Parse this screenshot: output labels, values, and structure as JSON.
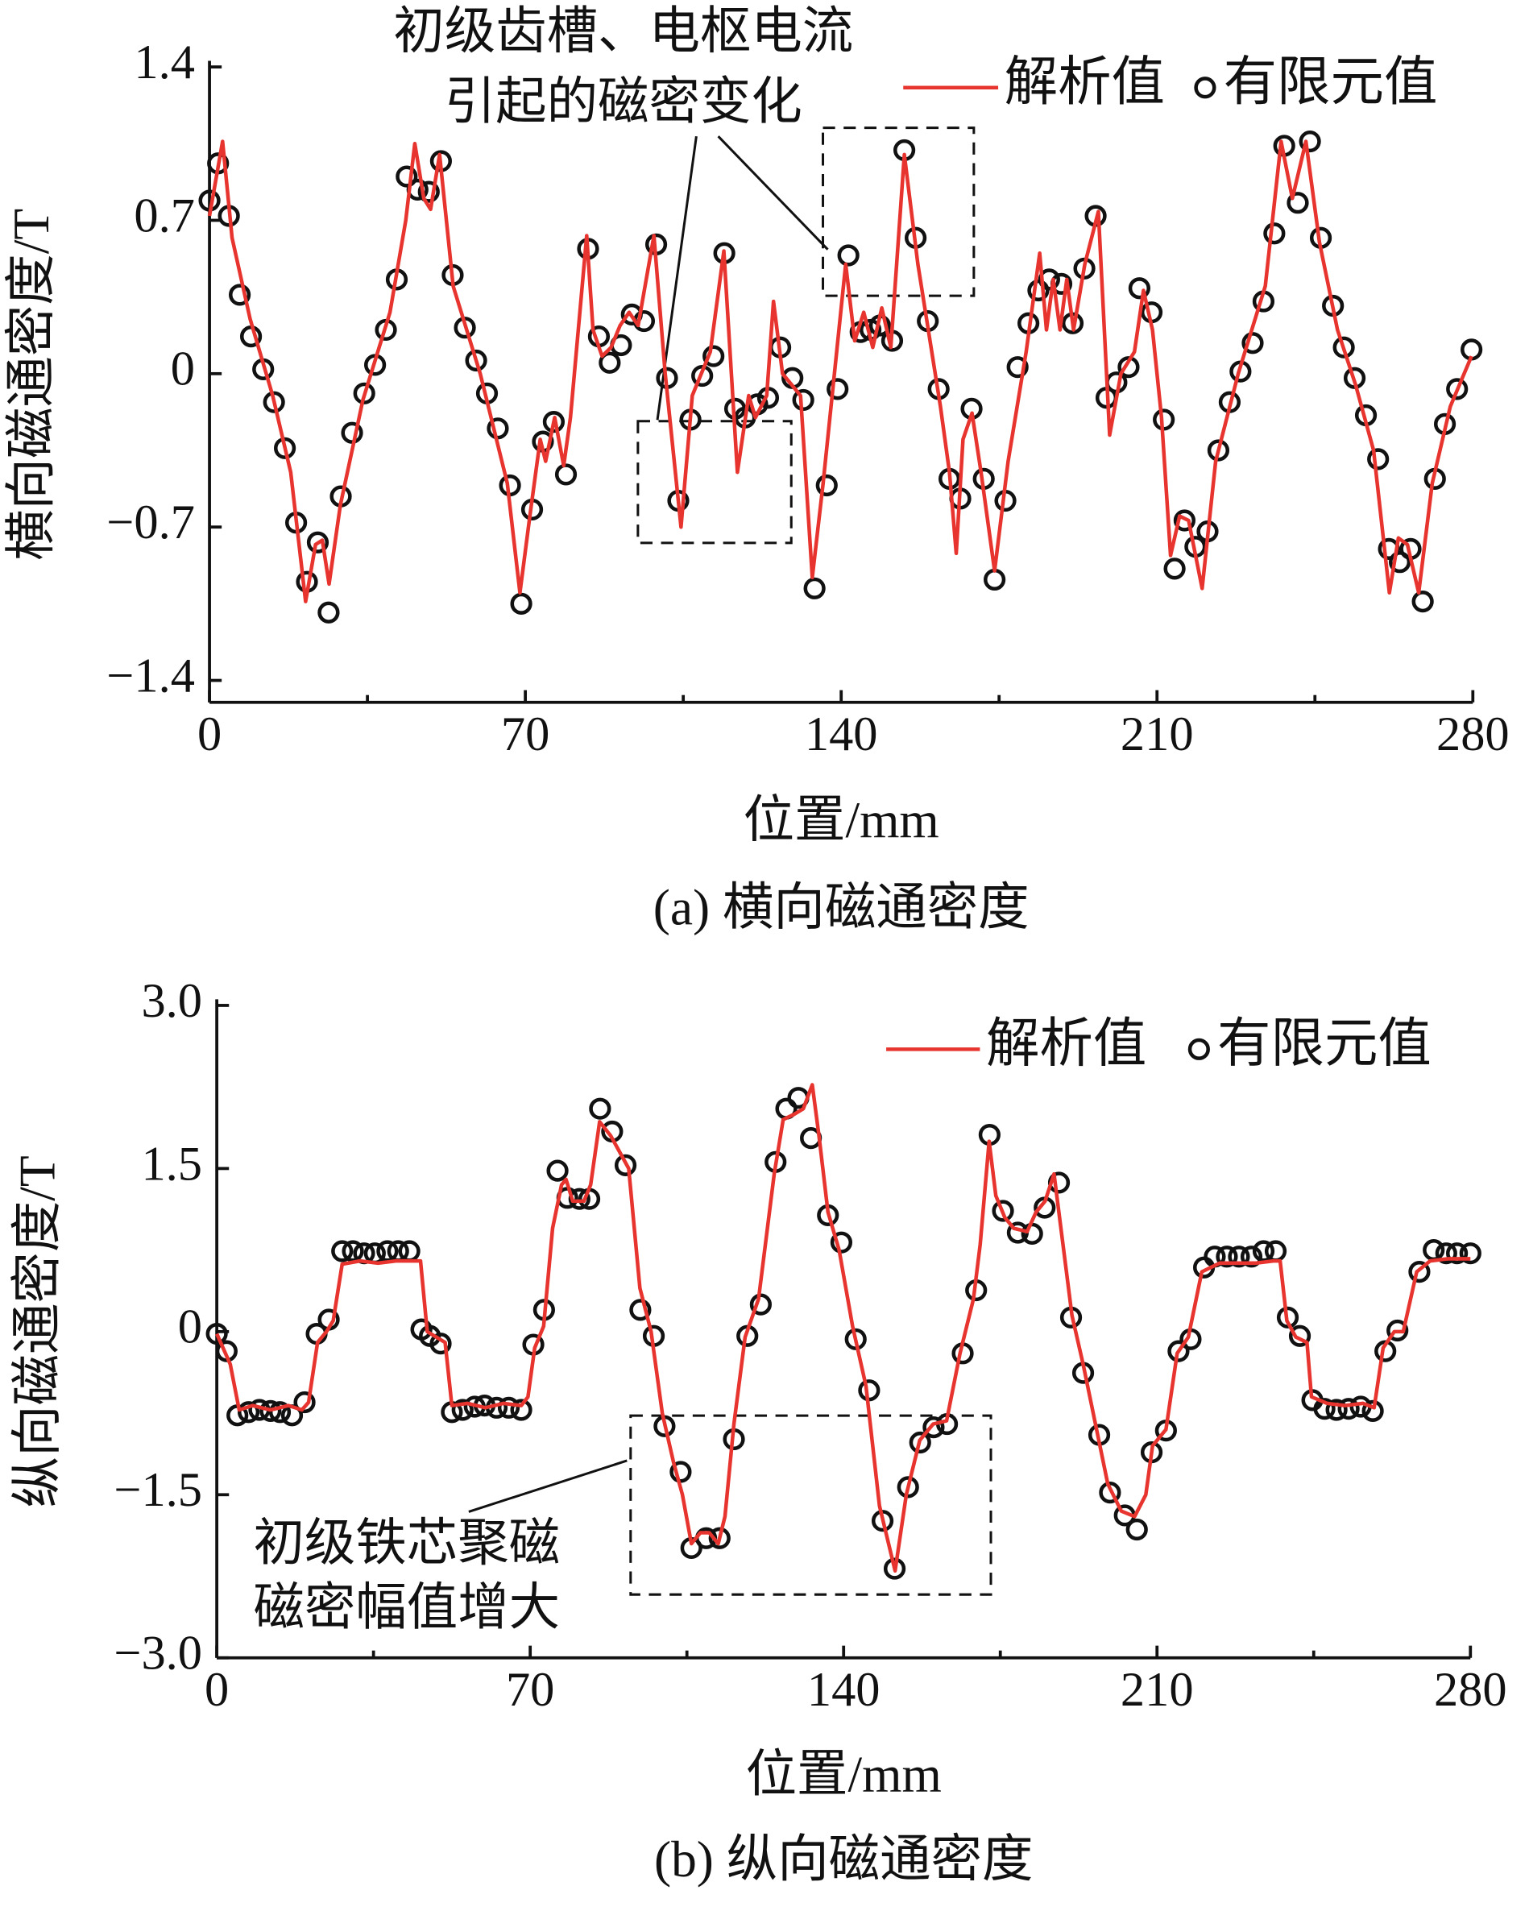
{
  "chart_data": [
    {
      "type": "line",
      "xlabel": "位置/mm",
      "ylabel": "横向磁通密度/T",
      "caption": "(a) 横向磁通密度",
      "annotations": [
        "初级齿槽、电枢电流",
        "引起的磁密变化"
      ],
      "xlim": [
        0,
        280
      ],
      "xticks": [
        0,
        70,
        140,
        210,
        280
      ],
      "xminorticks": [
        35,
        105,
        175,
        245
      ],
      "ylim": [
        -1.5,
        1.4
      ],
      "yticks": [
        {
          "value": -1.4,
          "label": "−1.4"
        },
        {
          "value": -0.7,
          "label": "−0.7"
        },
        0,
        0.7,
        1.4
      ],
      "legend": "upper right",
      "series": [
        {
          "name": "解析值",
          "color": "#e8342e",
          "type": "line",
          "x": [
            0,
            2.9,
            5,
            9,
            14,
            18,
            21.3,
            23.5,
            25,
            26.5,
            29,
            34,
            40,
            43.5,
            45.5,
            47.5,
            49,
            51,
            54,
            60,
            66,
            68.8,
            71,
            73.3,
            74.5,
            76.5,
            78.5,
            80,
            83.6,
            85,
            87,
            89,
            91,
            93,
            95,
            98.5,
            101,
            104.5,
            107,
            111,
            114,
            117,
            119.5,
            121,
            123.5,
            125,
            127,
            131,
            133.6,
            136,
            138,
            141,
            143,
            145,
            147,
            149,
            151,
            154,
            157,
            162,
            164,
            165.5,
            167,
            169,
            171,
            174,
            177,
            181,
            184,
            185.5,
            187,
            188.5,
            190,
            191.5,
            194,
            197,
            199.5,
            202,
            205,
            207,
            209,
            211,
            213,
            215,
            217,
            220,
            223,
            228,
            234,
            237.5,
            240,
            243,
            246,
            250,
            254,
            258,
            261.5,
            263.5,
            265.5,
            268,
            271,
            275,
            279.7
          ],
          "values": [
            0.72,
            1.06,
            0.62,
            0.25,
            -0.1,
            -0.45,
            -1.04,
            -0.78,
            -0.76,
            -0.96,
            -0.6,
            -0.12,
            0.28,
            0.7,
            1.05,
            0.8,
            0.75,
            1.0,
            0.4,
            0,
            -0.5,
            -1.0,
            -0.65,
            -0.3,
            -0.4,
            -0.2,
            -0.42,
            -0.2,
            0.63,
            0.2,
            0.08,
            0.12,
            0.22,
            0.28,
            0.22,
            0.63,
            0,
            -0.7,
            -0.1,
            0.1,
            0.56,
            -0.45,
            -0.1,
            -0.2,
            -0.1,
            0.33,
            0,
            -0.1,
            -0.93,
            -0.5,
            -0.1,
            0.5,
            0.15,
            0.28,
            0.12,
            0.3,
            0.12,
            1.0,
            0.5,
            -0.15,
            -0.45,
            -0.82,
            -0.3,
            -0.18,
            -0.45,
            -0.9,
            -0.4,
            0.1,
            0.55,
            0.2,
            0.43,
            0.2,
            0.43,
            0.2,
            0.5,
            0.74,
            -0.28,
            0,
            0.1,
            0.38,
            0.2,
            -0.2,
            -0.83,
            -0.65,
            -0.67,
            -0.98,
            -0.4,
            0,
            0.4,
            1.06,
            0.8,
            1.06,
            0.6,
            0.2,
            -0.05,
            -0.35,
            -1.0,
            -0.75,
            -0.78,
            -1.0,
            -0.5,
            -0.15,
            0.08
          ]
        },
        {
          "name": "有限元值",
          "color": "#111111",
          "type": "scatter",
          "x": [
            0,
            1.9,
            4.3,
            6.7,
            9.2,
            11.9,
            14.3,
            16.7,
            19.2,
            21.6,
            24,
            26.4,
            29.1,
            31.6,
            34.3,
            36.7,
            39.1,
            41.5,
            43.7,
            46.1,
            48.6,
            51.3,
            53.9,
            56.6,
            59.1,
            61.5,
            63.9,
            66.6,
            69.1,
            71.5,
            73.9,
            76.3,
            79,
            83.9,
            86.3,
            88.7,
            91.2,
            93.6,
            96.3,
            99,
            101.4,
            103.9,
            106.6,
            109.2,
            111.7,
            114.1,
            116.5,
            118.7,
            121.4,
            123.8,
            126.5,
            129.2,
            131.6,
            134.1,
            136.8,
            139.2,
            141.6,
            144.3,
            146.5,
            148.6,
            151.3,
            154,
            156.5,
            159.2,
            161.6,
            164,
            166.4,
            168.9,
            171.6,
            174,
            176.4,
            179.1,
            181.5,
            183.7,
            186.1,
            188.8,
            191.3,
            193.9,
            196.4,
            198.8,
            201,
            203.7,
            206.1,
            208.8,
            211.5,
            213.9,
            216.1,
            218.5,
            221.2,
            223.6,
            226.1,
            228.5,
            231.2,
            233.6,
            236,
            238.2,
            241.2,
            243.9,
            246.3,
            249,
            251.4,
            253.8,
            256.3,
            259,
            261.4,
            263.8,
            266.2,
            268.9,
            271.6,
            273.8,
            276.5,
            279.7
          ],
          "values": [
            0.79,
            0.96,
            0.72,
            0.36,
            0.17,
            0.02,
            -0.13,
            -0.34,
            -0.68,
            -0.95,
            -0.77,
            -1.09,
            -0.56,
            -0.27,
            -0.09,
            0.04,
            0.2,
            0.43,
            0.9,
            0.84,
            0.83,
            0.97,
            0.45,
            0.21,
            0.06,
            -0.09,
            -0.25,
            -0.51,
            -1.05,
            -0.62,
            -0.31,
            -0.22,
            -0.46,
            0.57,
            0.17,
            0.05,
            0.13,
            0.27,
            0.24,
            0.59,
            -0.02,
            -0.58,
            -0.21,
            -0.01,
            0.08,
            0.55,
            -0.16,
            -0.2,
            -0.14,
            -0.11,
            0.12,
            -0.02,
            -0.12,
            -0.98,
            -0.51,
            -0.07,
            0.54,
            0.19,
            0.2,
            0.22,
            0.15,
            1.02,
            0.62,
            0.24,
            -0.07,
            -0.48,
            -0.57,
            -0.16,
            -0.48,
            -0.94,
            -0.58,
            0.03,
            0.23,
            0.38,
            0.43,
            0.41,
            0.23,
            0.48,
            0.72,
            -0.11,
            -0.04,
            0.03,
            0.39,
            0.28,
            -0.21,
            -0.89,
            -0.67,
            -0.79,
            -0.72,
            -0.35,
            -0.13,
            0.01,
            0.14,
            0.33,
            0.64,
            1.04,
            0.78,
            1.06,
            0.62,
            0.31,
            0.12,
            -0.02,
            -0.19,
            -0.39,
            -0.8,
            -0.86,
            -0.8,
            -1.04,
            -0.48,
            -0.23,
            -0.07,
            0.11
          ]
        }
      ]
    },
    {
      "type": "line",
      "xlabel": "位置/mm",
      "ylabel": "纵向磁通密度/T",
      "caption": "(b) 纵向磁通密度",
      "annotations": [
        "初级铁芯聚磁",
        "磁密幅值增大"
      ],
      "xlim": [
        0,
        280
      ],
      "xticks": [
        0,
        70,
        140,
        210,
        280
      ],
      "xminorticks": [
        35,
        105,
        175,
        245
      ],
      "ylim": [
        -3,
        3
      ],
      "yticks": [
        {
          "value": -3,
          "label": "−3.0"
        },
        {
          "value": -1.5,
          "label": "−1.5"
        },
        0,
        1.5,
        {
          "value": 3,
          "label": "3.0"
        }
      ],
      "legend": "upper right",
      "series": [
        {
          "name": "解析值",
          "color": "#e8342e",
          "type": "line",
          "x": [
            0,
            3,
            5,
            8,
            12,
            16,
            19,
            20.5,
            22.5,
            24.5,
            26,
            28,
            32,
            36,
            40,
            44,
            45.5,
            47,
            49,
            51,
            52.5,
            56,
            60,
            64,
            68,
            69.5,
            71,
            73,
            75,
            77,
            78,
            79.5,
            82,
            83.5,
            85.5,
            88,
            90,
            92,
            94.5,
            97,
            99.5,
            102,
            104,
            106,
            108,
            110,
            112,
            113.5,
            115.5,
            118,
            121,
            124.5,
            126.5,
            129,
            131,
            133,
            134.5,
            136.5,
            139,
            142,
            145,
            148,
            151.5,
            154,
            157,
            160,
            163,
            166,
            169,
            170.5,
            172.5,
            174,
            176,
            178,
            181,
            183,
            185,
            187,
            189,
            191,
            193.5,
            196,
            199,
            202,
            205,
            207.5,
            209,
            212,
            214.5,
            217,
            220,
            224,
            228,
            232,
            236,
            237.5,
            239,
            241,
            243.5,
            244.5,
            248,
            252,
            256,
            258.5,
            260.5,
            263,
            265,
            268,
            271,
            275,
            280
          ],
          "values": [
            -0.02,
            -0.3,
            -0.72,
            -0.68,
            -0.72,
            -0.68,
            -0.72,
            -0.65,
            -0.1,
            0,
            0.1,
            0.62,
            0.65,
            0.63,
            0.65,
            0.65,
            0.65,
            0,
            -0.05,
            -0.1,
            -0.68,
            -0.66,
            -0.7,
            -0.66,
            -0.68,
            -0.6,
            -0.15,
            0.05,
            0.95,
            1.35,
            1.4,
            1.2,
            1.2,
            1.35,
            1.93,
            1.8,
            1.65,
            1.5,
            0.4,
            0,
            -0.75,
            -1.2,
            -1.5,
            -1.95,
            -1.85,
            -1.85,
            -1.95,
            -1.7,
            -0.85,
            -0.05,
            0.3,
            1.45,
            1.95,
            2.0,
            2.05,
            2.27,
            1.8,
            1.1,
            0.75,
            0.05,
            -0.5,
            -1.6,
            -2.2,
            -1.5,
            -1.0,
            -0.85,
            -0.82,
            -0.2,
            0.3,
            0.8,
            1.75,
            1.25,
            1.05,
            0.95,
            0.92,
            1.1,
            1.2,
            1.45,
            0.8,
            0.15,
            -0.3,
            -0.8,
            -1.4,
            -1.65,
            -1.7,
            -1.5,
            -1.05,
            -0.9,
            -0.2,
            -0.05,
            0.55,
            0.63,
            0.63,
            0.63,
            0.65,
            0.65,
            0.1,
            -0.05,
            -0.1,
            -0.6,
            -0.66,
            -0.68,
            -0.66,
            -0.7,
            -0.15,
            0,
            0,
            0.55,
            0.65,
            0.67,
            0.67
          ]
        },
        {
          "name": "有限元值",
          "color": "#111111",
          "type": "scatter",
          "x": [
            0,
            2.2,
            4.6,
            7.1,
            9.5,
            12,
            14.1,
            16.8,
            19.6,
            22.3,
            25,
            28,
            30.4,
            32.9,
            35.3,
            38.1,
            40.5,
            43,
            45.7,
            47.6,
            50,
            52.5,
            54.9,
            57.6,
            59.8,
            62.5,
            65.2,
            68,
            70.7,
            73.1,
            76.1,
            78.3,
            81,
            83.2,
            85.6,
            88.3,
            91.3,
            94.6,
            97.6,
            100,
            103.6,
            106,
            109.3,
            112.3,
            115.5,
            118.5,
            121.5,
            124.8,
            127.2,
            129.9,
            132.7,
            136.5,
            139.5,
            142.7,
            145.7,
            148.7,
            151.4,
            154.4,
            157.1,
            160.1,
            163.1,
            166.6,
            169.6,
            172.6,
            175.6,
            178.9,
            182.1,
            184.9,
            188.1,
            190.8,
            193.5,
            197.1,
            199.5,
            202.8,
            205.5,
            208.8,
            212,
            214.8,
            217.5,
            220.5,
            222.9,
            225.6,
            228.3,
            231.1,
            233.8,
            236.5,
            239.2,
            241.9,
            244.7,
            247.4,
            250.1,
            252.8,
            255.5,
            258.2,
            261,
            263.7,
            268.6,
            271.8,
            274.6,
            277,
            280
          ],
          "values": [
            -0.02,
            -0.18,
            -0.77,
            -0.74,
            -0.72,
            -0.73,
            -0.74,
            -0.77,
            -0.65,
            -0.02,
            0.11,
            0.74,
            0.74,
            0.72,
            0.72,
            0.74,
            0.74,
            0.74,
            0.02,
            -0.04,
            -0.11,
            -0.74,
            -0.72,
            -0.69,
            -0.68,
            -0.7,
            -0.7,
            -0.72,
            -0.12,
            0.2,
            1.48,
            1.23,
            1.22,
            1.22,
            2.05,
            1.84,
            1.53,
            0.2,
            -0.04,
            -0.87,
            -1.29,
            -1.99,
            -1.9,
            -1.9,
            -0.99,
            -0.04,
            0.25,
            1.56,
            2.05,
            2.15,
            1.78,
            1.07,
            0.82,
            -0.07,
            -0.54,
            -1.74,
            -2.18,
            -1.43,
            -1.02,
            -0.88,
            -0.85,
            -0.2,
            0.38,
            1.81,
            1.11,
            0.91,
            0.9,
            1.14,
            1.37,
            0.13,
            -0.38,
            -0.95,
            -1.48,
            -1.69,
            -1.82,
            -1.11,
            -0.91,
            -0.18,
            -0.07,
            0.59,
            0.69,
            0.69,
            0.69,
            0.69,
            0.74,
            0.74,
            0.13,
            -0.04,
            -0.63,
            -0.71,
            -0.72,
            -0.71,
            -0.69,
            -0.73,
            -0.18,
            0.01,
            0.55,
            0.75,
            0.72,
            0.72,
            0.72
          ]
        }
      ]
    }
  ]
}
